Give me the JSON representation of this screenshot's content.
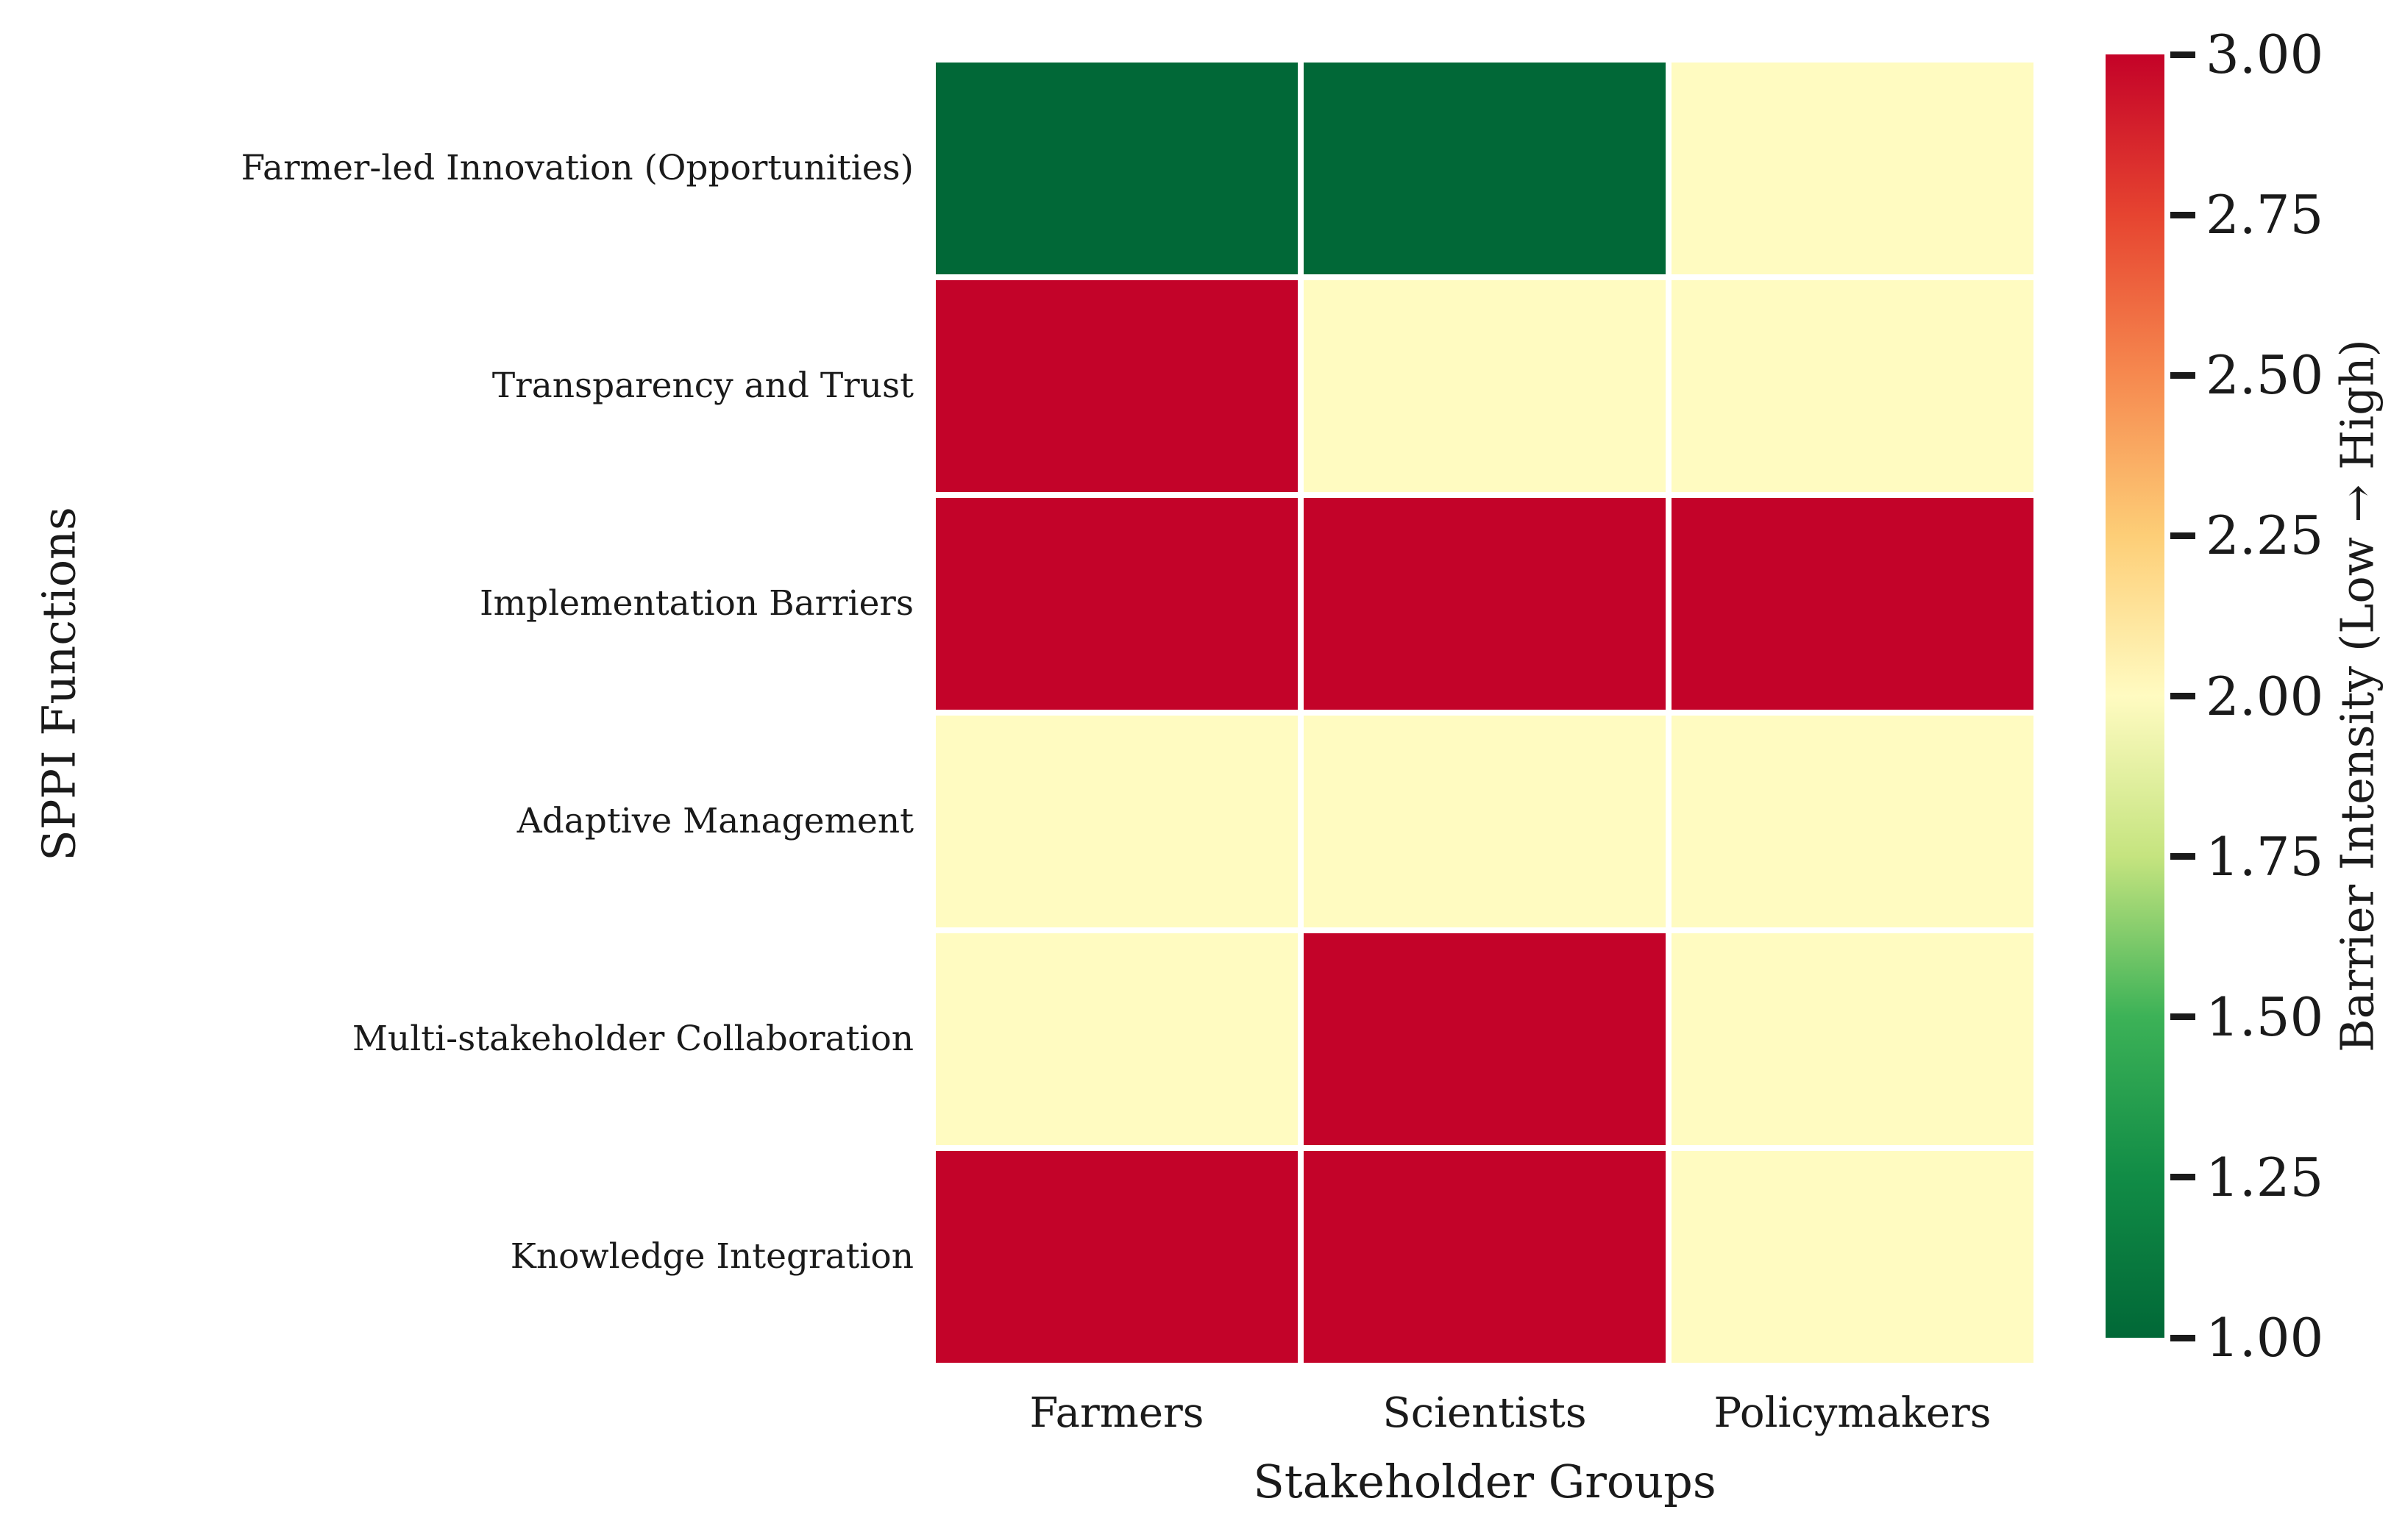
{
  "chart_data": {
    "type": "heatmap",
    "xlabel": "Stakeholder Groups",
    "ylabel": "SPPI Functions",
    "columns": [
      "Farmers",
      "Scientists",
      "Policymakers"
    ],
    "rows": [
      "Farmer-led Innovation (Opportunities)",
      "Transparency and Trust",
      "Implementation Barriers",
      "Adaptive Management",
      "Multi-stakeholder Collaboration",
      "Knowledge Integration"
    ],
    "values": [
      [
        1,
        1,
        2
      ],
      [
        3,
        2,
        2
      ],
      [
        3,
        3,
        3
      ],
      [
        2,
        2,
        2
      ],
      [
        2,
        3,
        2
      ],
      [
        3,
        3,
        2
      ]
    ],
    "value_colors": {
      "1": "#016837",
      "2": "#fffbc1",
      "3": "#c30329"
    },
    "cell_gap_color": "#ffffff",
    "grid": false,
    "colorbar": {
      "label": "Barrier Intensity (Low → High)",
      "min": 1.0,
      "max": 3.0,
      "ticks": [
        "3.00",
        "2.75",
        "2.50",
        "2.25",
        "2.00",
        "1.75",
        "1.50",
        "1.25",
        "1.00"
      ],
      "gradient_stops_top_to_bottom": [
        "#c40228",
        "#e64430",
        "#f6894f",
        "#fdce77",
        "#fffbc1",
        "#c5e47f",
        "#3cb257",
        "#118c46",
        "#016837"
      ]
    }
  }
}
